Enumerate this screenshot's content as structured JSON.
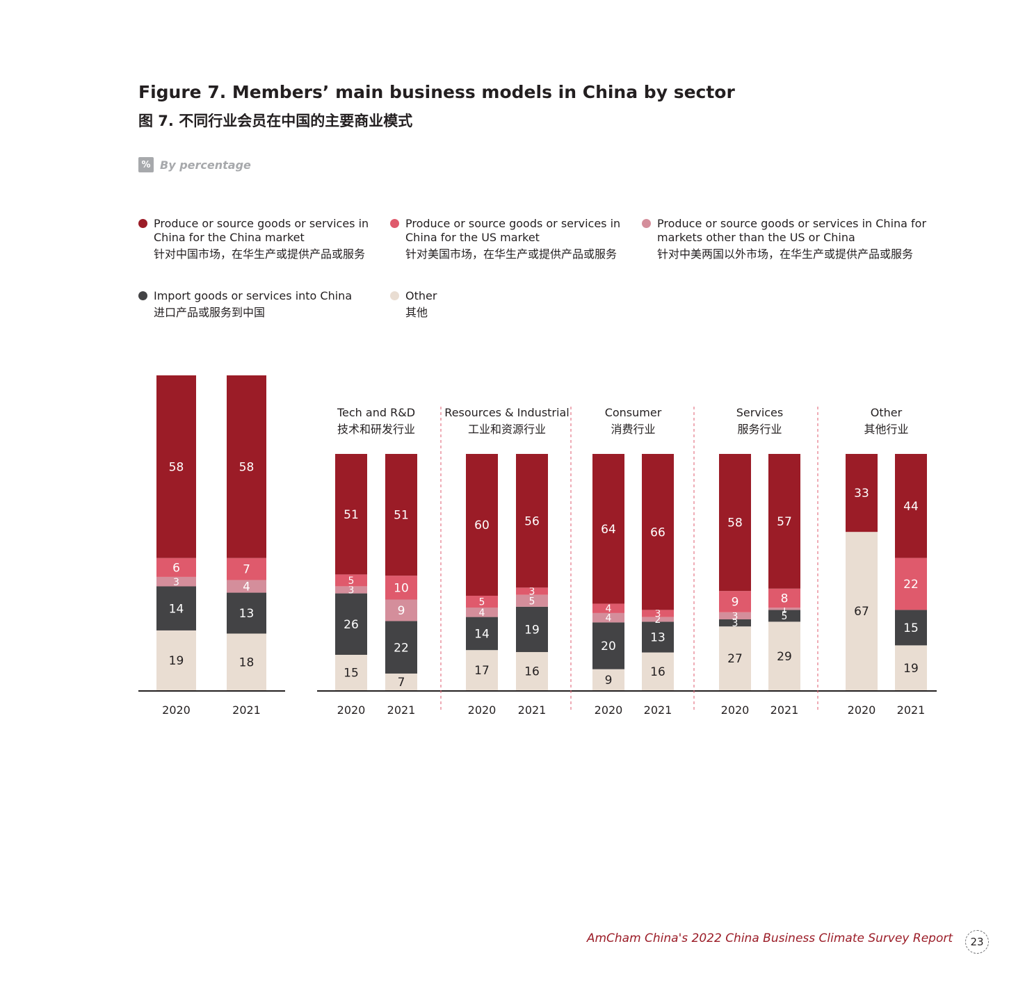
{
  "title_en": "Figure 7. Members’ main business models in China by sector",
  "title_zh": "图 7. 不同行业会员在中国的主要商业模式",
  "unit_badge": "%",
  "unit_label": "By percentage",
  "legend": [
    {
      "en": "Produce or source goods or services in China for the China market",
      "zh": "针对中国市场，在华生产或提供产品或服务",
      "color": "#9b1c27"
    },
    {
      "en": "Produce or source goods or services in China for the US market",
      "zh": "针对美国市场，在华生产或提供产品或服务",
      "color": "#df5a6c"
    },
    {
      "en": "Produce or source goods or services in China for markets other than the US or China",
      "zh": "针对中美两国以外市场，在华生产或提供产品或服务",
      "color": "#d48e9b"
    },
    {
      "en": "Import goods or services into China",
      "zh": "进口产品或服务到中国",
      "color": "#434345"
    },
    {
      "en": "Other",
      "zh": "其他",
      "color": "#e9ddd2"
    }
  ],
  "chart_data": {
    "type": "bar",
    "stacked": true,
    "stack_order_bottom_to_top": [
      "Other",
      "Import goods or services into China",
      "Produce or source goods or services in China for markets other than the US or China",
      "Produce or source goods or services in China for the US market",
      "Produce or source goods or services in China for the China market"
    ],
    "ylim": [
      0,
      100
    ],
    "groups": [
      {
        "label_en": "",
        "label_zh": "",
        "bars": [
          {
            "year": "2020",
            "values": {
              "other": 19,
              "import": 14,
              "third": 3,
              "us": 6,
              "china": 58
            }
          },
          {
            "year": "2021",
            "values": {
              "other": 18,
              "import": 13,
              "third": 4,
              "us": 7,
              "china": 58
            }
          }
        ]
      },
      {
        "label_en": "Tech and R&D",
        "label_zh": "技术和研发行业",
        "bars": [
          {
            "year": "2020",
            "values": {
              "other": 15,
              "import": 26,
              "third": 3,
              "us": 5,
              "china": 51
            }
          },
          {
            "year": "2021",
            "values": {
              "other": 7,
              "import": 22,
              "third": 9,
              "us": 10,
              "china": 51
            }
          }
        ]
      },
      {
        "label_en": "Resources & Industrial",
        "label_zh": "工业和资源行业",
        "bars": [
          {
            "year": "2020",
            "values": {
              "other": 17,
              "import": 14,
              "third": 4,
              "us": 5,
              "china": 60
            }
          },
          {
            "year": "2021",
            "values": {
              "other": 16,
              "import": 19,
              "third": 5,
              "us": 3,
              "china": 56
            }
          }
        ]
      },
      {
        "label_en": "Consumer",
        "label_zh": "消费行业",
        "bars": [
          {
            "year": "2020",
            "values": {
              "other": 9,
              "import": 20,
              "third": 4,
              "us": 4,
              "china": 64
            }
          },
          {
            "year": "2021",
            "values": {
              "other": 16,
              "import": 13,
              "third": 2,
              "us": 3,
              "china": 66
            }
          }
        ]
      },
      {
        "label_en": "Services",
        "label_zh": "服务行业",
        "bars": [
          {
            "year": "2020",
            "values": {
              "other": 27,
              "import": 3,
              "third": 3,
              "us": 9,
              "china": 58
            }
          },
          {
            "year": "2021",
            "values": {
              "other": 29,
              "import": 5,
              "third": 1,
              "us": 8,
              "china": 57
            }
          }
        ]
      },
      {
        "label_en": "Other",
        "label_zh": "其他行业",
        "bars": [
          {
            "year": "2020",
            "values": {
              "other": 67,
              "import": 0,
              "third": 0,
              "us": 0,
              "china": 33
            }
          },
          {
            "year": "2021",
            "values": {
              "other": 19,
              "import": 15,
              "third": 0,
              "us": 22,
              "china": 44
            }
          }
        ]
      }
    ]
  },
  "footer": "AmCham China's 2022 China Business Climate Survey Report",
  "page_number": "23"
}
